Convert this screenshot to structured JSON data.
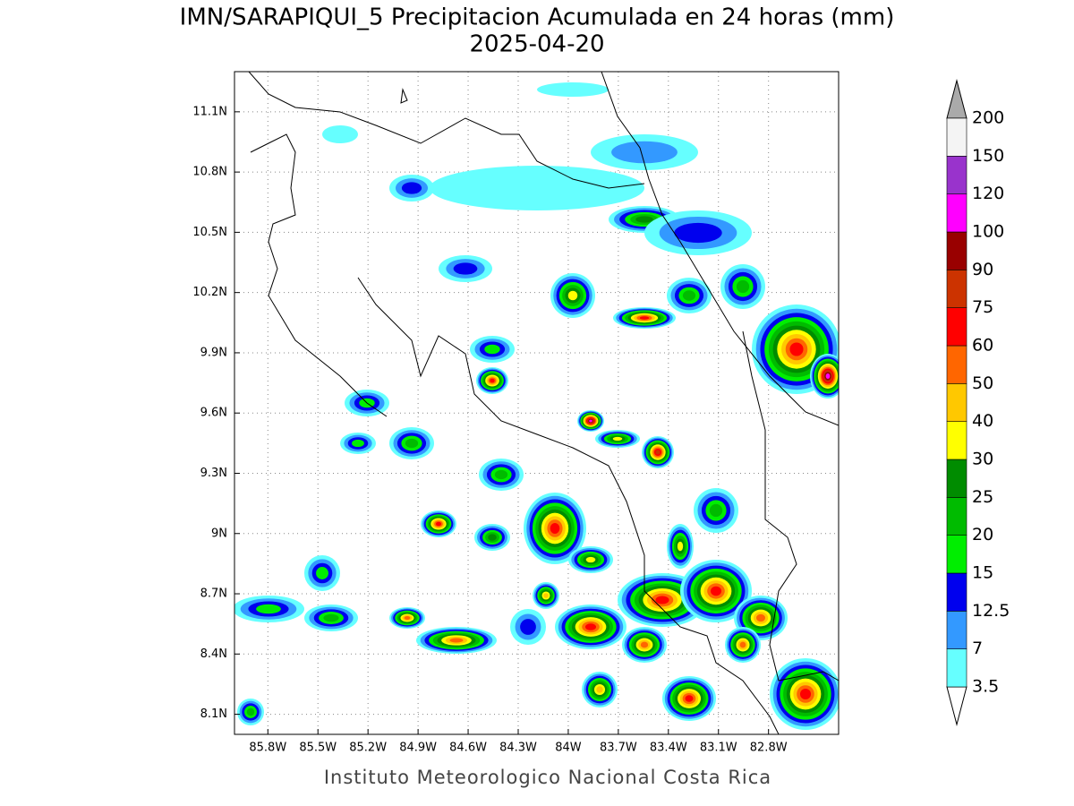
{
  "chart_data": {
    "type": "map",
    "title": "IMN/SARAPIQUI_5 Precipitacion Acumulada en 24 horas (mm)",
    "subtitle": "2025-04-20",
    "footer": "Instituto Meteorologico Nacional Costa Rica",
    "xlim": [
      -86.0,
      -82.38
    ],
    "ylim": [
      8.0,
      11.3
    ],
    "grid": true,
    "xticks": [
      {
        "value": -85.8,
        "label": "85.8W"
      },
      {
        "value": -85.5,
        "label": "85.5W"
      },
      {
        "value": -85.2,
        "label": "85.2W"
      },
      {
        "value": -84.9,
        "label": "84.9W"
      },
      {
        "value": -84.6,
        "label": "84.6W"
      },
      {
        "value": -84.3,
        "label": "84.3W"
      },
      {
        "value": -84.0,
        "label": "84W"
      },
      {
        "value": -83.7,
        "label": "83.7W"
      },
      {
        "value": -83.4,
        "label": "83.4W"
      },
      {
        "value": -83.1,
        "label": "83.1W"
      },
      {
        "value": -82.8,
        "label": "82.8W"
      }
    ],
    "yticks": [
      {
        "value": 8.1,
        "label": "8.1N"
      },
      {
        "value": 8.4,
        "label": "8.4N"
      },
      {
        "value": 8.7,
        "label": "8.7N"
      },
      {
        "value": 9.0,
        "label": "9N"
      },
      {
        "value": 9.3,
        "label": "9.3N"
      },
      {
        "value": 9.6,
        "label": "9.6N"
      },
      {
        "value": 9.9,
        "label": "9.9N"
      },
      {
        "value": 10.2,
        "label": "10.2N"
      },
      {
        "value": 10.5,
        "label": "10.5N"
      },
      {
        "value": 10.8,
        "label": "10.8N"
      },
      {
        "value": 11.1,
        "label": "11.1N"
      }
    ],
    "colorbar": {
      "levels": [
        3.5,
        7,
        12.5,
        15,
        20,
        25,
        30,
        40,
        50,
        60,
        75,
        90,
        100,
        120,
        150,
        200
      ],
      "colors": [
        "#66ffff",
        "#3399ff",
        "#0000ee",
        "#00ee00",
        "#00bb00",
        "#008c00",
        "#ffff00",
        "#ffc800",
        "#ff6600",
        "#ff0000",
        "#cc3300",
        "#990000",
        "#ff00ff",
        "#9933cc",
        "#f4f4f4"
      ],
      "under_color": "#ffffff",
      "over_color": "#aaaaaa"
    }
  }
}
